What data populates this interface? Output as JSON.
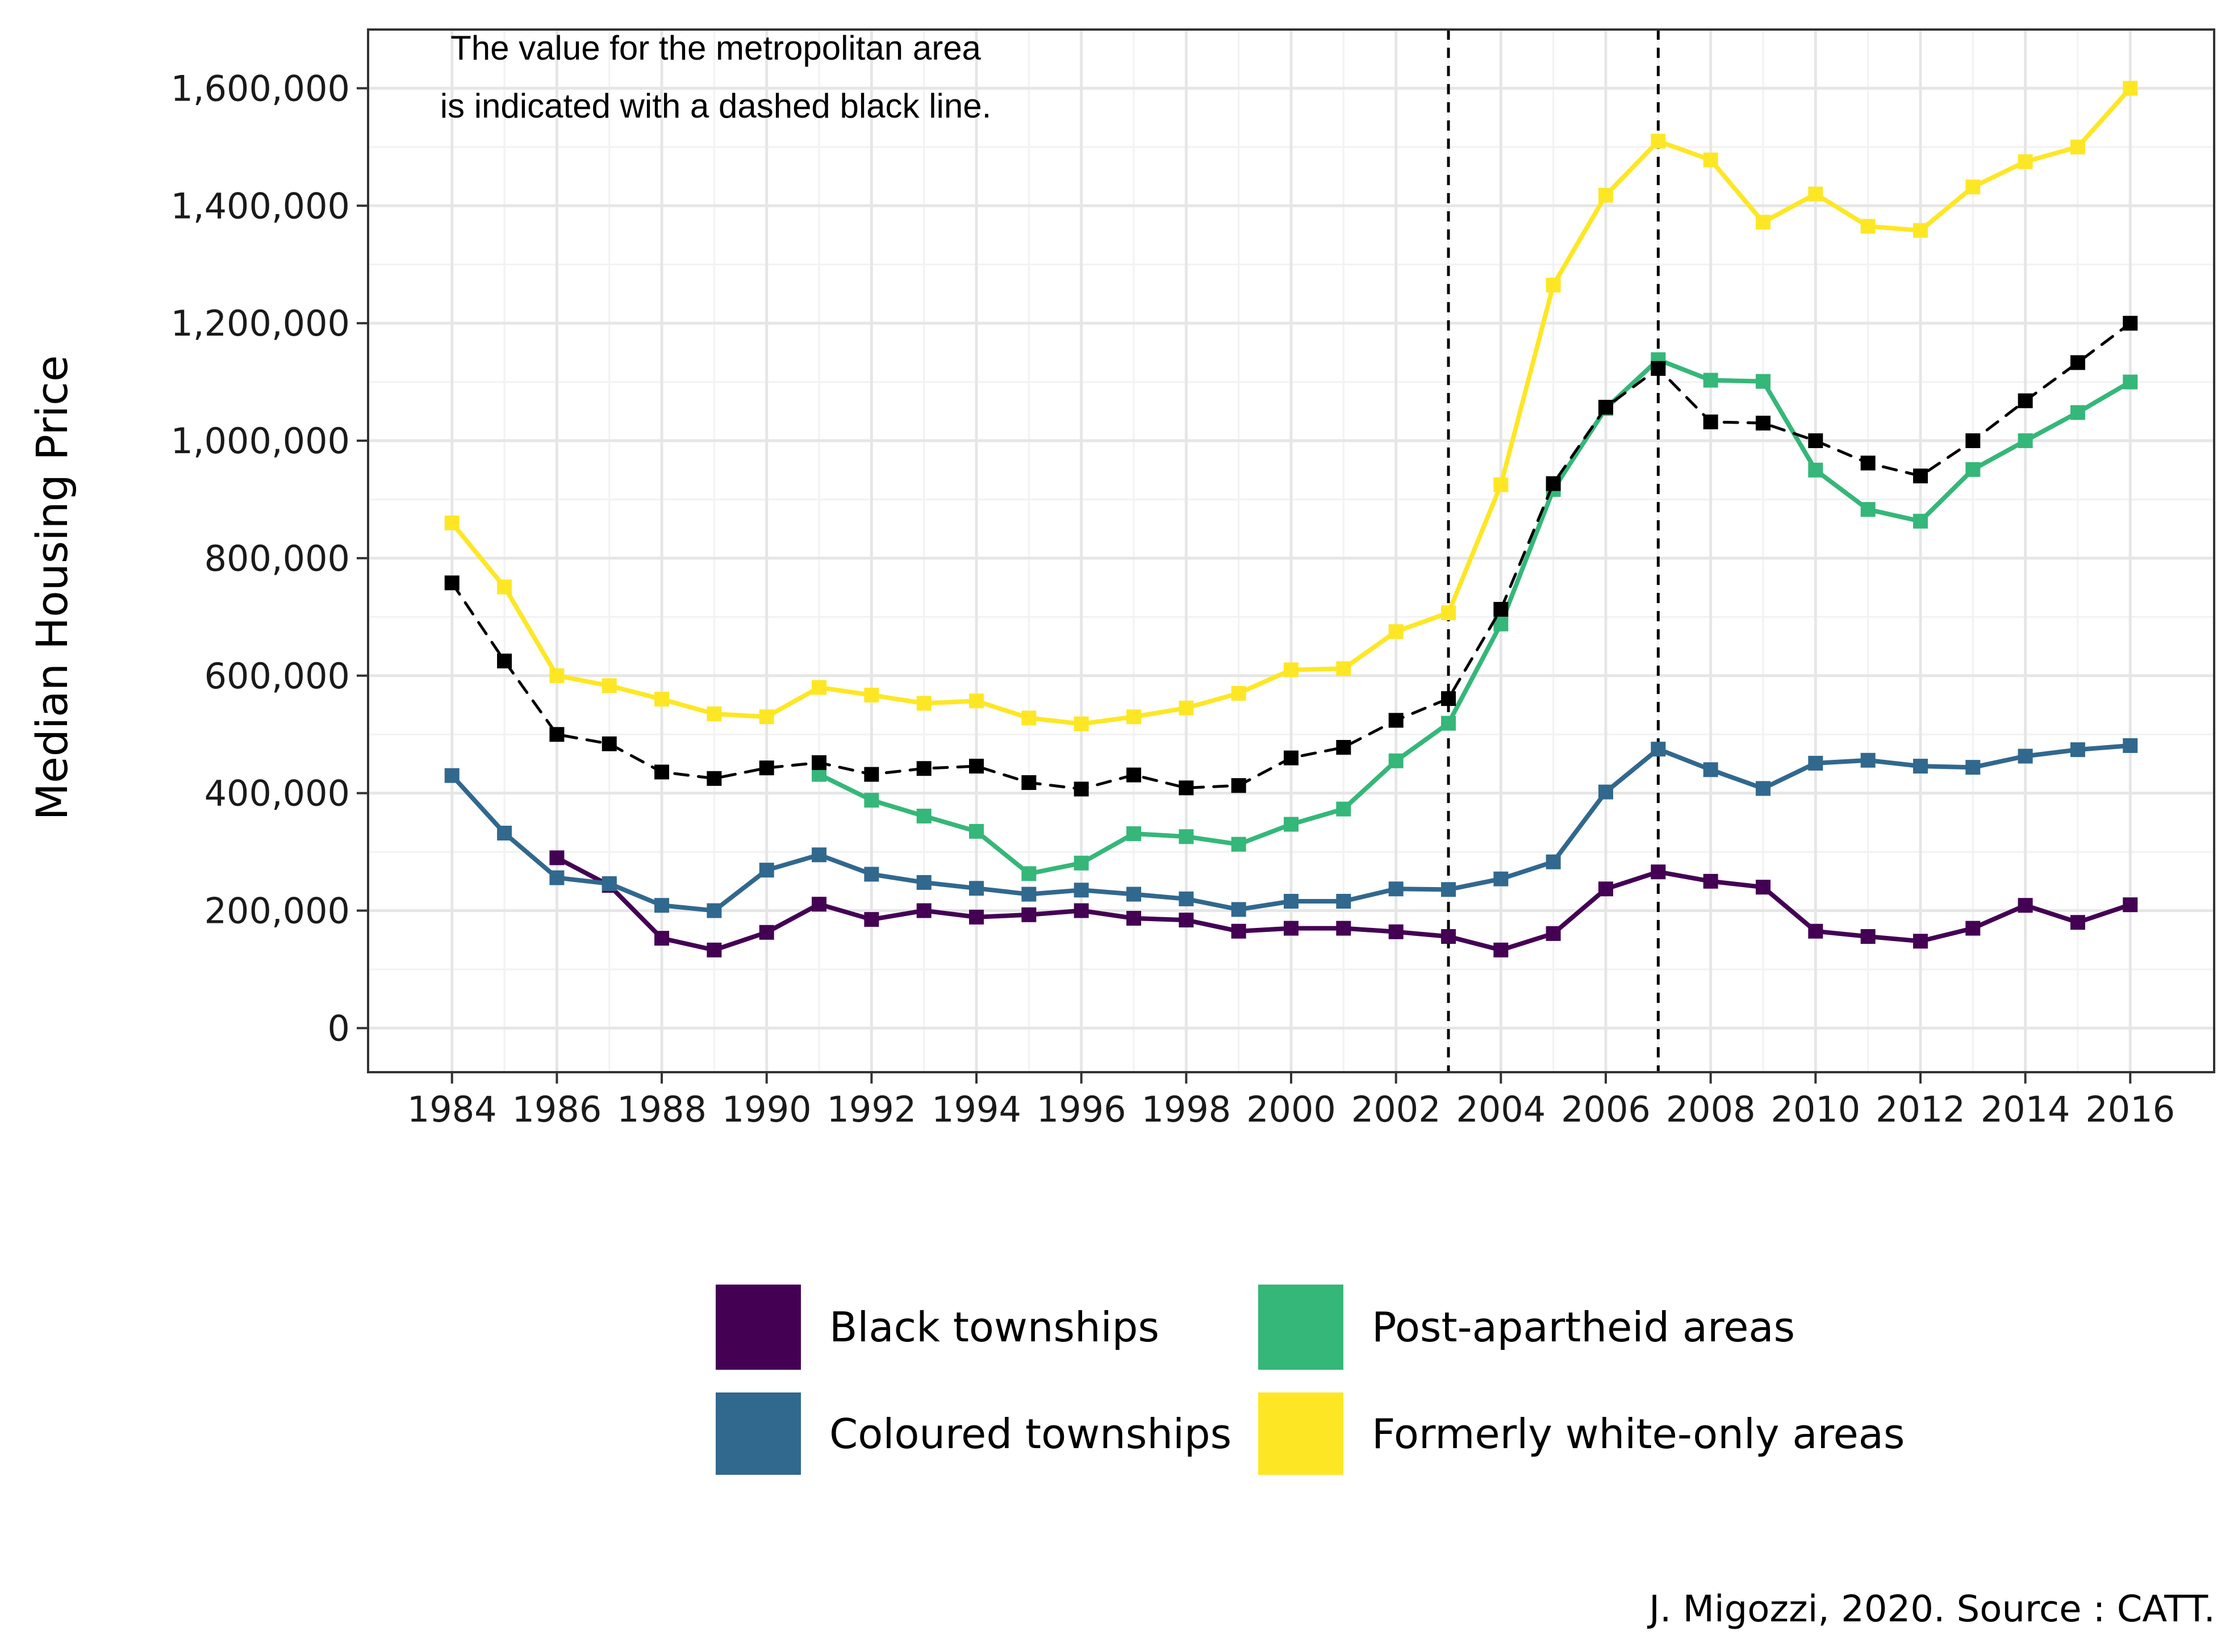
{
  "chart_data": {
    "type": "line",
    "ylabel": "Median Housing Price",
    "xlabel": "",
    "ylim": [
      -75000,
      1700000
    ],
    "xlim": [
      1982.4,
      2017.6
    ],
    "y_ticks": [
      0,
      200000,
      400000,
      600000,
      800000,
      1000000,
      1200000,
      1400000,
      1600000
    ],
    "y_tick_labels": [
      "0",
      "200,000",
      "400,000",
      "600,000",
      "800,000",
      "1,000,000",
      "1,200,000",
      "1,400,000",
      "1,600,000"
    ],
    "x_ticks": [
      1984,
      1986,
      1988,
      1990,
      1992,
      1994,
      1996,
      1998,
      2000,
      2002,
      2004,
      2006,
      2008,
      2010,
      2012,
      2014,
      2016
    ],
    "x_tick_labels": [
      "1984",
      "1986",
      "1988",
      "1990",
      "1992",
      "1994",
      "1996",
      "1998",
      "2000",
      "2002",
      "2004",
      "2006",
      "2008",
      "2010",
      "2012",
      "2014",
      "2016"
    ],
    "vertical_reference_lines": [
      2003,
      2007
    ],
    "grid": true,
    "legend_position": "bottom",
    "annotation": [
      "The value for the metropolitan area",
      "is indicated with a dashed black line."
    ],
    "caption": "J. Migozzi, 2020. Source : CATT.",
    "series": [
      {
        "name": "Black townships",
        "color": "#440154",
        "x": [
          1986,
          1987,
          1988,
          1989,
          1990,
          1991,
          1992,
          1993,
          1994,
          1995,
          1996,
          1997,
          1998,
          1999,
          2000,
          2001,
          2002,
          2003,
          2004,
          2005,
          2006,
          2007,
          2008,
          2009,
          2010,
          2011,
          2012,
          2013,
          2014,
          2015,
          2016
        ],
        "values": [
          290000,
          243000,
          153000,
          133000,
          163000,
          211000,
          185000,
          200000,
          189000,
          193000,
          200000,
          187000,
          184000,
          165000,
          170000,
          170000,
          164000,
          156000,
          133000,
          161000,
          237000,
          266000,
          250000,
          240000,
          165000,
          156000,
          148000,
          170000,
          209000,
          180000,
          210000
        ]
      },
      {
        "name": "Coloured townships",
        "color": "#31688E",
        "x": [
          1984,
          1985,
          1986,
          1987,
          1988,
          1989,
          1990,
          1991,
          1992,
          1993,
          1994,
          1995,
          1996,
          1997,
          1998,
          1999,
          2000,
          2001,
          2002,
          2003,
          2004,
          2005,
          2006,
          2007,
          2008,
          2009,
          2010,
          2011,
          2012,
          2013,
          2014,
          2015,
          2016
        ],
        "values": [
          430000,
          332000,
          256000,
          246000,
          209000,
          200000,
          269000,
          295000,
          262000,
          248000,
          238000,
          228000,
          235000,
          228000,
          220000,
          202000,
          216000,
          216000,
          237000,
          236000,
          254000,
          283000,
          402000,
          475000,
          440000,
          408000,
          451000,
          456000,
          446000,
          444000,
          463000,
          474000,
          481000
        ]
      },
      {
        "name": "Post-apartheid areas",
        "color": "#35B779",
        "x": [
          1991,
          1992,
          1993,
          1994,
          1995,
          1996,
          1997,
          1998,
          1999,
          2000,
          2001,
          2002,
          2003,
          2004,
          2005,
          2006,
          2007,
          2008,
          2009,
          2010,
          2011,
          2012,
          2013,
          2014,
          2015,
          2016
        ],
        "values": [
          432000,
          388000,
          361000,
          335000,
          263000,
          281000,
          331000,
          326000,
          313000,
          347000,
          373000,
          455000,
          519000,
          688000,
          917000,
          1055000,
          1138000,
          1103000,
          1101000,
          950000,
          883000,
          863000,
          951000,
          1000000,
          1048000,
          1100000
        ]
      },
      {
        "name": "Formerly white-only areas",
        "color": "#FDE725",
        "x": [
          1984,
          1985,
          1986,
          1987,
          1988,
          1989,
          1990,
          1991,
          1992,
          1993,
          1994,
          1995,
          1996,
          1997,
          1998,
          1999,
          2000,
          2001,
          2002,
          2003,
          2004,
          2005,
          2006,
          2007,
          2008,
          2009,
          2010,
          2011,
          2012,
          2013,
          2014,
          2015,
          2016
        ],
        "values": [
          860000,
          751000,
          600000,
          583000,
          560000,
          535000,
          530000,
          580000,
          567000,
          553000,
          557000,
          528000,
          518000,
          530000,
          545000,
          570000,
          610000,
          612000,
          675000,
          707000,
          925000,
          1265000,
          1418000,
          1510000,
          1478000,
          1372000,
          1420000,
          1365000,
          1358000,
          1432000,
          1475000,
          1500000,
          1600000
        ]
      },
      {
        "name": "",
        "color": "#000000",
        "dashed": true,
        "x": [
          1984,
          1985,
          1986,
          1987,
          1988,
          1989,
          1990,
          1991,
          1992,
          1993,
          1994,
          1995,
          1996,
          1997,
          1998,
          1999,
          2000,
          2001,
          2002,
          2003,
          2004,
          2005,
          2006,
          2007,
          2008,
          2009,
          2010,
          2011,
          2012,
          2013,
          2014,
          2015,
          2016
        ],
        "values": [
          758000,
          625000,
          500000,
          484000,
          436000,
          425000,
          443000,
          452000,
          432000,
          442000,
          446000,
          418000,
          407000,
          431000,
          409000,
          413000,
          460000,
          478000,
          524000,
          561000,
          713000,
          927000,
          1057000,
          1123000,
          1032000,
          1030000,
          1000000,
          962000,
          940000,
          1000000,
          1068000,
          1133000,
          1200000
        ]
      }
    ]
  },
  "legend": {
    "items": [
      {
        "label": "Black townships",
        "color": "#440154"
      },
      {
        "label": "Coloured townships",
        "color": "#31688E"
      },
      {
        "label": "Post-apartheid areas",
        "color": "#35B779"
      },
      {
        "label": "Formerly white-only areas",
        "color": "#FDE725"
      }
    ]
  }
}
